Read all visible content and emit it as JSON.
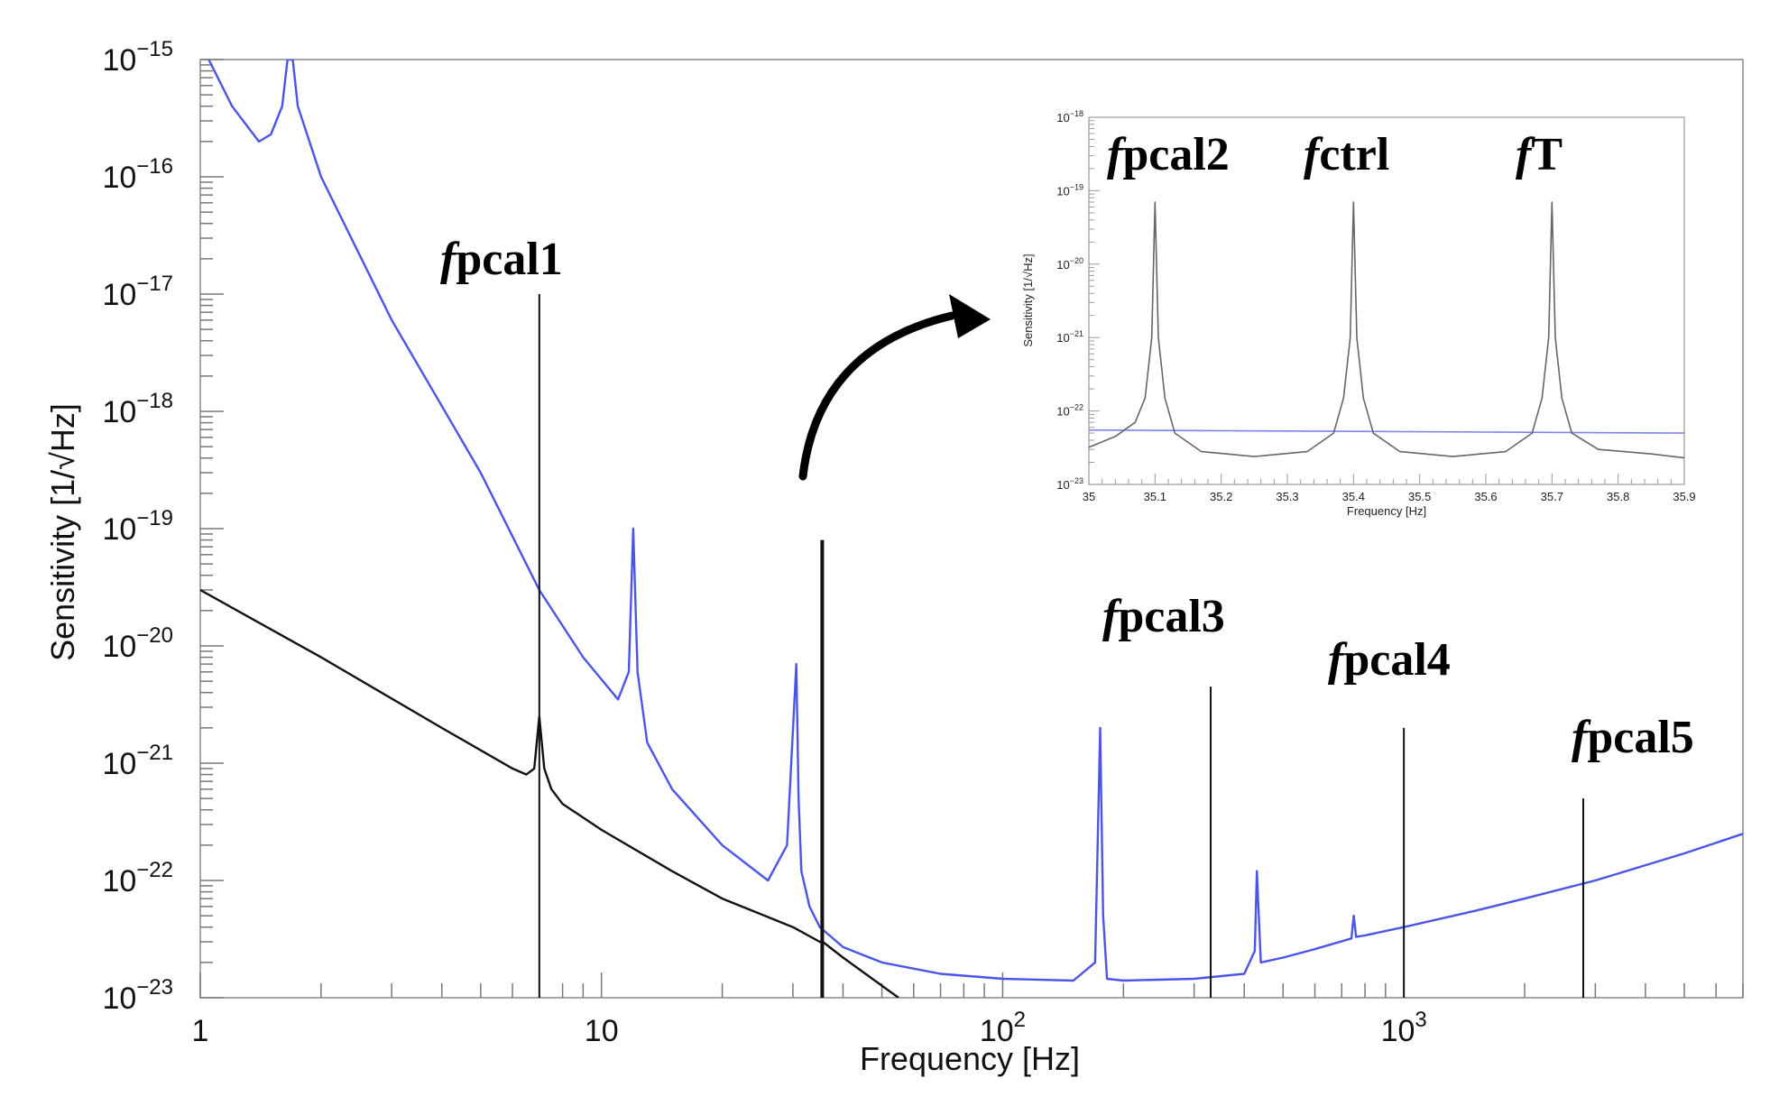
{
  "chart_data": [
    {
      "type": "line",
      "title": "",
      "xlabel": "Frequency [Hz]",
      "ylabel": "Sensitivity [1/√Hz]",
      "x_scale": "log",
      "y_scale": "log",
      "xlim": [
        1,
        7000
      ],
      "ylim": [
        1e-23,
        1e-15
      ],
      "x_ticks": [
        {
          "value": 1,
          "base": "1",
          "exp": ""
        },
        {
          "value": 10,
          "base": "10",
          "exp": ""
        },
        {
          "value": 100,
          "base": "10",
          "exp": "2"
        },
        {
          "value": 1000,
          "base": "10",
          "exp": "3"
        }
      ],
      "y_ticks": [
        {
          "value": 1e-15,
          "base": "10",
          "exp": "−15"
        },
        {
          "value": 1e-16,
          "base": "10",
          "exp": "−16"
        },
        {
          "value": 1e-17,
          "base": "10",
          "exp": "−17"
        },
        {
          "value": 1e-18,
          "base": "10",
          "exp": "−18"
        },
        {
          "value": 1e-19,
          "base": "10",
          "exp": "−19"
        },
        {
          "value": 1e-20,
          "base": "10",
          "exp": "−20"
        },
        {
          "value": 1e-21,
          "base": "10",
          "exp": "−21"
        },
        {
          "value": 1e-22,
          "base": "10",
          "exp": "−22"
        },
        {
          "value": 1e-23,
          "base": "10",
          "exp": "−23"
        }
      ],
      "grid": false,
      "series": [
        {
          "color": "#4a55e8",
          "x": [
            1.05,
            1.2,
            1.4,
            1.5,
            1.6,
            1.65,
            1.7,
            1.75,
            2,
            3,
            5,
            7,
            9,
            11,
            11.7,
            12,
            12.3,
            13,
            15,
            20,
            26,
            29,
            30.6,
            31,
            31.5,
            33,
            35,
            40,
            50,
            70,
            100,
            150,
            170,
            175,
            178,
            182,
            200,
            300,
            400,
            425,
            430,
            440,
            500,
            600,
            740,
            750,
            760,
            800,
            1000,
            1500,
            2000,
            3000,
            5000,
            7000
          ],
          "y": [
            1e-15,
            4e-16,
            2e-16,
            2.3e-16,
            4e-16,
            1e-15,
            1e-15,
            4e-16,
            1e-16,
            6e-18,
            3e-19,
            3e-20,
            8e-21,
            3.5e-21,
            6e-21,
            1e-19,
            6e-21,
            1.5e-21,
            6e-22,
            2e-22,
            1e-22,
            2e-22,
            7e-21,
            5e-22,
            1.2e-22,
            6e-23,
            4e-23,
            2.7e-23,
            2e-23,
            1.6e-23,
            1.45e-23,
            1.4e-23,
            2e-23,
            2e-21,
            5e-23,
            1.45e-23,
            1.4e-23,
            1.45e-23,
            1.6e-23,
            2.5e-23,
            1.2e-22,
            2e-23,
            2.2e-23,
            2.6e-23,
            3.2e-23,
            5e-23,
            3.3e-23,
            3.4e-23,
            4e-23,
            5.5e-23,
            7e-23,
            1e-22,
            1.7e-22,
            2.5e-22
          ]
        },
        {
          "color": "#111111",
          "x": [
            1,
            2,
            4,
            6,
            6.5,
            6.8,
            7,
            7.2,
            7.5,
            8,
            10,
            15,
            20,
            30,
            35,
            35.6,
            40,
            55
          ],
          "y": [
            3e-20,
            8e-21,
            2e-21,
            9e-22,
            8e-22,
            9e-22,
            2.5e-21,
            9e-22,
            6e-22,
            4.5e-22,
            2.7e-22,
            1.2e-22,
            7e-23,
            4e-23,
            3e-23,
            3e-23,
            2.2e-23,
            1e-23
          ]
        }
      ],
      "calibration_lines": [
        {
          "x": 7,
          "y": 1e-17
        },
        {
          "x": 35.5,
          "y": 8e-20
        },
        {
          "x": 330,
          "y": 4.5e-21
        },
        {
          "x": 1000,
          "y": 2e-21
        },
        {
          "x": 2800,
          "y": 5e-22
        }
      ],
      "annotations": [
        {
          "prefix": "f",
          "label": "pcal1"
        },
        {
          "prefix": "f",
          "label": "pcal3"
        },
        {
          "prefix": "f",
          "label": "pcal4"
        },
        {
          "prefix": "f",
          "label": "pcal5"
        }
      ]
    },
    {
      "type": "line",
      "title": "",
      "xlabel": "Frequency [Hz]",
      "ylabel": "Sensitivity [1/√Hz]",
      "x_scale": "linear",
      "y_scale": "log",
      "xlim": [
        35,
        35.9
      ],
      "ylim": [
        1e-23,
        1e-18
      ],
      "x_ticks": [
        "35",
        "35.1",
        "35.2",
        "35.3",
        "35.4",
        "35.5",
        "35.6",
        "35.7",
        "35.8",
        "35.9"
      ],
      "y_ticks": [
        {
          "value": 1e-18,
          "base": "10",
          "exp": "−18"
        },
        {
          "value": 1e-19,
          "base": "10",
          "exp": "−19"
        },
        {
          "value": 1e-20,
          "base": "10",
          "exp": "−20"
        },
        {
          "value": 1e-21,
          "base": "10",
          "exp": "−21"
        },
        {
          "value": 1e-22,
          "base": "10",
          "exp": "−22"
        },
        {
          "value": 1e-23,
          "base": "10",
          "exp": "−23"
        }
      ],
      "series": [
        {
          "color": "#7b84ee",
          "x": [
            35,
            35.9
          ],
          "y": [
            5.5e-23,
            5e-23
          ]
        },
        {
          "color": "#666666",
          "x": [
            35,
            35.04,
            35.07,
            35.085,
            35.095,
            35.1,
            35.105,
            35.115,
            35.13,
            35.17,
            35.25,
            35.33,
            35.37,
            35.385,
            35.395,
            35.4,
            35.405,
            35.415,
            35.43,
            35.47,
            35.55,
            35.63,
            35.67,
            35.685,
            35.695,
            35.7,
            35.705,
            35.715,
            35.73,
            35.77,
            35.85,
            35.9
          ],
          "y": [
            3.2e-23,
            4.5e-23,
            7e-23,
            1.5e-22,
            1e-21,
            7e-20,
            1e-21,
            1.5e-22,
            5e-23,
            2.8e-23,
            2.4e-23,
            2.8e-23,
            5e-23,
            1.5e-22,
            1e-21,
            7e-20,
            1e-21,
            1.5e-22,
            5e-23,
            2.8e-23,
            2.4e-23,
            2.8e-23,
            5e-23,
            1.5e-22,
            1e-21,
            7e-20,
            1e-21,
            1.5e-22,
            5e-23,
            3e-23,
            2.6e-23,
            2.3e-23
          ]
        }
      ],
      "annotations": [
        {
          "prefix": "f",
          "label": "pcal2"
        },
        {
          "prefix": "f",
          "label": "ctrl"
        },
        {
          "prefix": "f",
          "label": "T"
        }
      ]
    }
  ]
}
